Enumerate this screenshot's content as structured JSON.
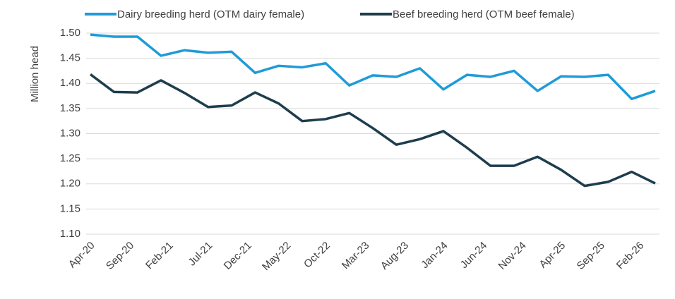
{
  "chart_data": {
    "type": "line",
    "ylabel": "Million head",
    "categories": [
      "Apr-20",
      null,
      null,
      null,
      null,
      "Sep-20",
      null,
      null,
      null,
      null,
      "Feb-21",
      null,
      null,
      null,
      null,
      "Jul-21",
      null,
      null,
      null,
      null,
      "Dec-21",
      null,
      null,
      null,
      null,
      "May-22",
      null,
      null,
      null,
      null,
      "Oct-22",
      null,
      null,
      null,
      null,
      "Mar-23",
      null,
      null,
      null,
      null,
      "Aug-23",
      null,
      null,
      null,
      null,
      "Jan-24",
      null,
      null,
      null,
      null,
      "Jun-24",
      null,
      null,
      null,
      null,
      "Nov-24",
      null,
      null,
      null,
      null,
      "Apr-25",
      null,
      null,
      null,
      null,
      "Sep-25",
      null,
      null,
      null,
      null,
      "Feb-26",
      null,
      null
    ],
    "series": [
      {
        "name": "Dairy breeding herd (OTM dairy female)",
        "color": "#1f9bd7",
        "values": [
          1.497,
          null,
          null,
          1.493,
          null,
          null,
          1.493,
          null,
          null,
          1.455,
          null,
          null,
          1.466,
          null,
          null,
          1.461,
          null,
          null,
          1.463,
          null,
          null,
          1.421,
          null,
          null,
          1.435,
          null,
          null,
          1.432,
          null,
          null,
          1.44,
          null,
          null,
          1.396,
          null,
          null,
          1.416,
          null,
          null,
          1.413,
          null,
          null,
          1.43,
          null,
          null,
          1.388,
          null,
          null,
          1.417,
          null,
          null,
          1.413,
          null,
          null,
          1.425,
          null,
          null,
          1.385,
          null,
          null,
          1.414,
          null,
          null,
          1.413,
          null,
          null,
          1.417,
          null,
          null,
          1.369,
          null,
          null,
          1.385
        ]
      },
      {
        "name": "Beef breeding herd (OTM beef female)",
        "color": "#1e3d4d",
        "values": [
          1.418,
          null,
          null,
          1.383,
          null,
          null,
          1.382,
          null,
          null,
          1.406,
          null,
          null,
          1.381,
          null,
          null,
          1.353,
          null,
          null,
          1.356,
          null,
          null,
          1.382,
          null,
          null,
          1.36,
          null,
          null,
          1.325,
          null,
          null,
          1.329,
          null,
          null,
          1.341,
          null,
          null,
          1.311,
          null,
          null,
          1.278,
          null,
          null,
          1.289,
          null,
          null,
          1.305,
          null,
          null,
          1.272,
          null,
          null,
          1.236,
          null,
          null,
          1.236,
          null,
          null,
          1.254,
          null,
          null,
          1.228,
          null,
          null,
          1.196,
          null,
          null,
          1.204,
          null,
          null,
          1.224,
          null,
          null,
          1.201
        ]
      }
    ],
    "ylim": [
      1.1,
      1.5
    ],
    "yticks": [
      {
        "value": 1.1,
        "label": "1.10"
      },
      {
        "value": 1.15,
        "label": "1.15"
      },
      {
        "value": 1.2,
        "label": "1.20"
      },
      {
        "value": 1.25,
        "label": "1.25"
      },
      {
        "value": 1.3,
        "label": "1.30"
      },
      {
        "value": 1.35,
        "label": "1.35"
      },
      {
        "value": 1.4,
        "label": "1.40"
      },
      {
        "value": 1.45,
        "label": "1.45"
      },
      {
        "value": 1.5,
        "label": "1.50"
      }
    ],
    "grid": true
  }
}
